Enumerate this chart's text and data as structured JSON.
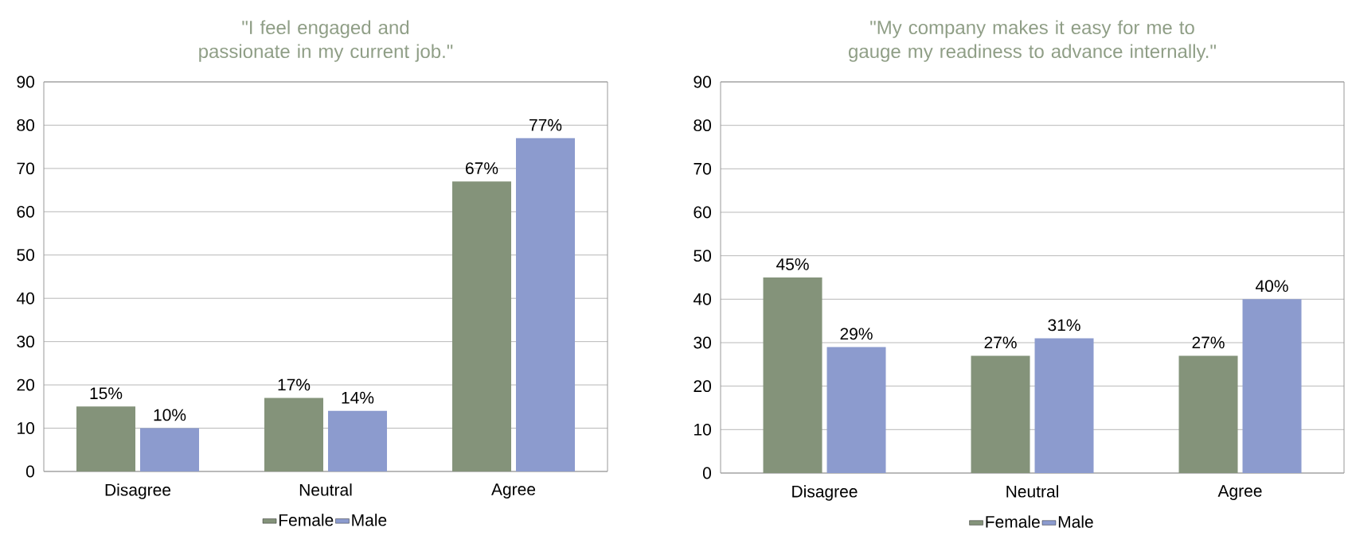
{
  "chart_data": [
    {
      "type": "bar",
      "title": "\"I feel engaged and passionate in my current job.\"",
      "categories": [
        "Disagree",
        "Neutral",
        "Agree"
      ],
      "series": [
        {
          "name": "Female",
          "color": "#84937a",
          "values": [
            15,
            17,
            67
          ],
          "value_labels": [
            "15%",
            "17%",
            "67%"
          ]
        },
        {
          "name": "Male",
          "color": "#8c9bce",
          "values": [
            10,
            14,
            77
          ],
          "value_labels": [
            "10%",
            "14%",
            "77%"
          ]
        }
      ],
      "ylim": [
        0,
        90
      ],
      "yticks": [
        0,
        10,
        20,
        30,
        40,
        50,
        60,
        70,
        80,
        90
      ],
      "grid": "y",
      "legend": "bottom"
    },
    {
      "type": "bar",
      "title": "\"My company makes it easy for me to gauge my readiness to advance internally.\"",
      "categories": [
        "Disagree",
        "Neutral",
        "Agree"
      ],
      "series": [
        {
          "name": "Female",
          "color": "#84937a",
          "values": [
            45,
            27,
            27
          ],
          "value_labels": [
            "45%",
            "27%",
            "27%"
          ]
        },
        {
          "name": "Male",
          "color": "#8c9bce",
          "values": [
            29,
            31,
            40
          ],
          "value_labels": [
            "29%",
            "31%",
            "40%"
          ]
        }
      ],
      "ylim": [
        0,
        90
      ],
      "yticks": [
        0,
        10,
        20,
        30,
        40,
        50,
        60,
        70,
        80,
        90
      ],
      "grid": "y",
      "legend": "bottom"
    }
  ]
}
